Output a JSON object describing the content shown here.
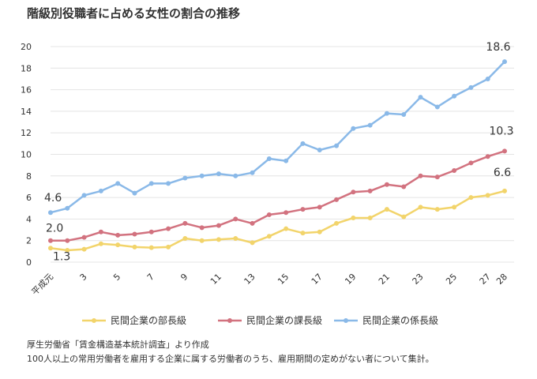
{
  "chart_data": {
    "type": "line",
    "title": "階級別役職者に占める女性の割合の推移",
    "xlabel": "",
    "ylabel": "",
    "ylim": [
      0,
      20
    ],
    "yticks": [
      0,
      2,
      4,
      6,
      8,
      10,
      12,
      14,
      16,
      18,
      20
    ],
    "x": [
      "平成元",
      "2",
      "3",
      "4",
      "5",
      "6",
      "7",
      "8",
      "9",
      "10",
      "11",
      "12",
      "13",
      "14",
      "15",
      "16",
      "17",
      "18",
      "19",
      "20",
      "21",
      "22",
      "23",
      "24",
      "25",
      "26",
      "27",
      "28"
    ],
    "x_tick_labels": [
      "平成元",
      "",
      "3",
      "",
      "5",
      "",
      "7",
      "",
      "9",
      "",
      "11",
      "",
      "13",
      "",
      "15",
      "",
      "17",
      "",
      "19",
      "",
      "21",
      "",
      "23",
      "",
      "25",
      "",
      "27",
      "28"
    ],
    "grid": true,
    "legend_position": "bottom",
    "series": [
      {
        "name": "民間企業の部長級",
        "color": "#f2d46b",
        "values": [
          1.3,
          1.1,
          1.2,
          1.7,
          1.6,
          1.4,
          1.35,
          1.4,
          2.2,
          2.0,
          2.1,
          2.2,
          1.8,
          2.4,
          3.1,
          2.7,
          2.8,
          3.6,
          4.1,
          4.1,
          4.9,
          4.2,
          5.1,
          4.9,
          5.1,
          6.0,
          6.2,
          6.6
        ],
        "labels": [
          {
            "index": 0,
            "text": "1.3"
          },
          {
            "index": 27,
            "text": "6.6"
          }
        ]
      },
      {
        "name": "民間企業の課長級",
        "color": "#d2727f",
        "values": [
          2.0,
          2.0,
          2.3,
          2.8,
          2.5,
          2.6,
          2.8,
          3.1,
          3.6,
          3.2,
          3.4,
          4.0,
          3.6,
          4.4,
          4.6,
          4.9,
          5.1,
          5.8,
          6.5,
          6.6,
          7.2,
          7.0,
          8.0,
          7.9,
          8.5,
          9.2,
          9.8,
          10.3
        ],
        "labels": [
          {
            "index": 0,
            "text": "2.0"
          },
          {
            "index": 27,
            "text": "10.3"
          }
        ]
      },
      {
        "name": "民間企業の係長級",
        "color": "#8ab9e8",
        "values": [
          4.6,
          5.0,
          6.2,
          6.6,
          7.3,
          6.4,
          7.3,
          7.3,
          7.8,
          8.0,
          8.2,
          8.0,
          8.3,
          9.6,
          9.4,
          11.0,
          10.4,
          10.8,
          12.4,
          12.7,
          13.8,
          13.7,
          15.3,
          14.4,
          15.4,
          16.2,
          17.0,
          18.6
        ],
        "labels": [
          {
            "index": 0,
            "text": "4.6"
          },
          {
            "index": 27,
            "text": "18.6"
          }
        ]
      }
    ]
  },
  "footnote": {
    "source": "厚生労働省「賃金構造基本統計調査」より作成",
    "note": "100人以上の常用労働者を雇用する企業に属する労働者のうち、雇用期間の定めがない者について集計。"
  },
  "colors": {
    "grid": "#e4e4e4",
    "text": "#333333"
  }
}
